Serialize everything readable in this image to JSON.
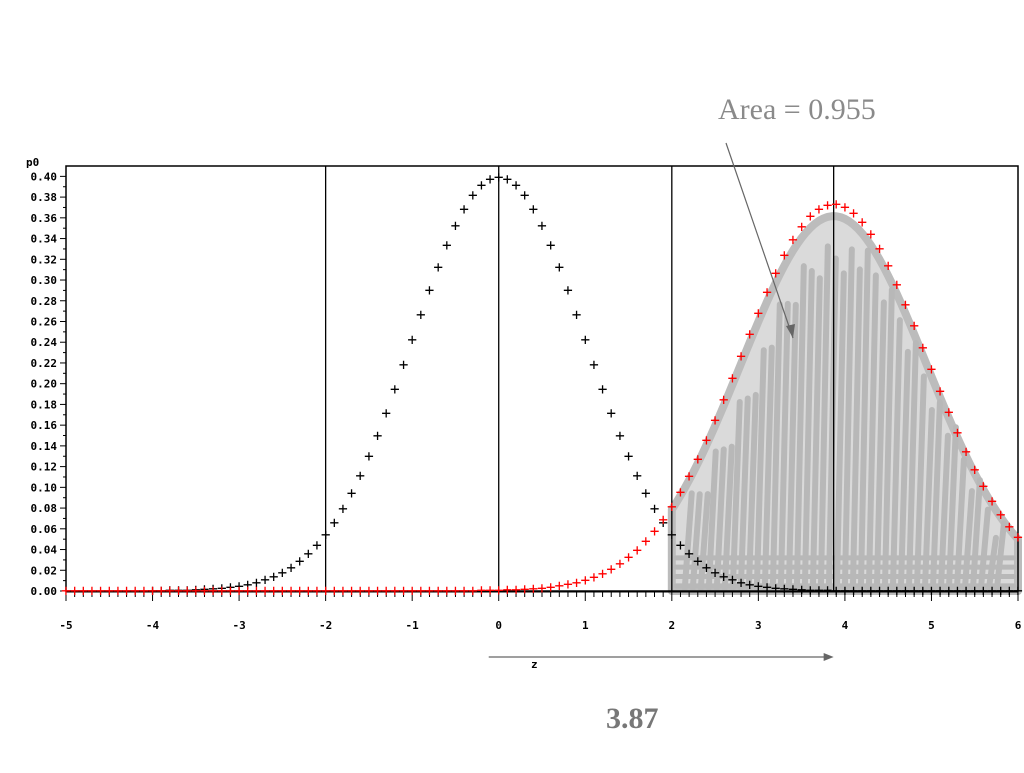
{
  "chart_data": {
    "type": "scatter",
    "title": "",
    "xlabel": "z",
    "ylabel": "p0",
    "xlim": [
      -5,
      6
    ],
    "ylim": [
      0,
      0.41
    ],
    "x_ticks": [
      -5,
      -4,
      -3,
      -2,
      -1,
      0,
      1,
      2,
      3,
      4,
      5,
      6
    ],
    "y_ticks": [
      0.0,
      0.02,
      0.04,
      0.06,
      0.08,
      0.1,
      0.12,
      0.14,
      0.16,
      0.18,
      0.2,
      0.22,
      0.24,
      0.26,
      0.28,
      0.3,
      0.32,
      0.34,
      0.36,
      0.38,
      0.4
    ],
    "reference_lines_x": [
      -2,
      0,
      2,
      3.87
    ],
    "series": [
      {
        "color": "#000000",
        "marker": "+",
        "mean": 0,
        "sd": 1,
        "x_start": -4,
        "x_end": 6,
        "step": 0.1
      },
      {
        "color": "#ff0000",
        "marker": "+",
        "mean": 3.87,
        "sd": 1.07,
        "x_start": -5,
        "x_end": 6,
        "step": 0.1
      }
    ],
    "shaded_region": {
      "x_from": 2,
      "x_to": 6,
      "color": "#bcbcbc"
    },
    "annotations": {
      "area_label": "Area = 0.955",
      "value_label": "3.87",
      "arrow_from_x": 0,
      "arrow_to_x": 3.87
    },
    "grid": false,
    "legend": "none"
  }
}
